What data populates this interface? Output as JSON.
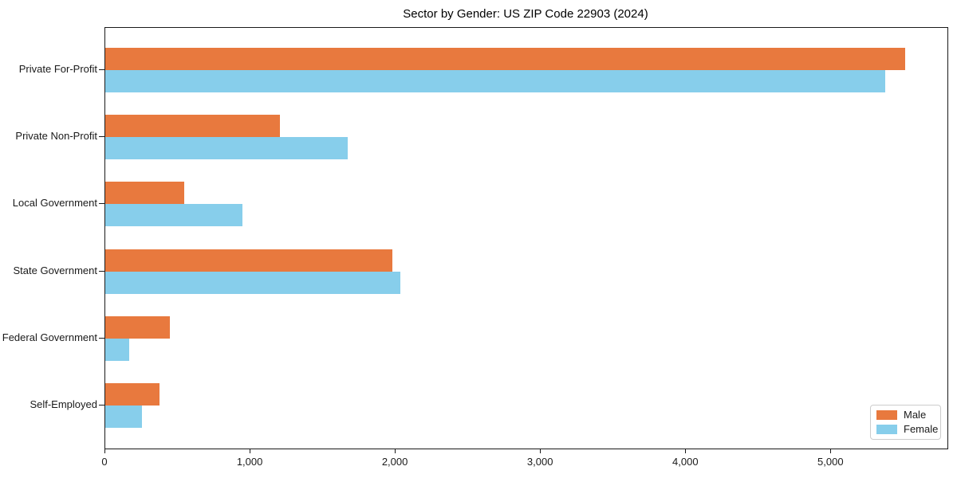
{
  "chart_data": {
    "type": "bar",
    "orientation": "horizontal",
    "title": "Sector by Gender: US ZIP Code 22903 (2024)",
    "categories": [
      "Private For-Profit",
      "Private Non-Profit",
      "Local Government",
      "State Government",
      "Federal Government",
      "Self-Employed"
    ],
    "series": [
      {
        "name": "Male",
        "color": "#e8793e",
        "values": [
          5510,
          1200,
          545,
          1975,
          445,
          375
        ]
      },
      {
        "name": "Female",
        "color": "#87ceeb",
        "values": [
          5370,
          1670,
          945,
          2030,
          165,
          250
        ]
      }
    ],
    "xlabel": "",
    "ylabel": "",
    "xlim": [
      0,
      5800
    ],
    "xticks": [
      {
        "value": 0,
        "label": "0"
      },
      {
        "value": 1000,
        "label": "1,000"
      },
      {
        "value": 2000,
        "label": "2,000"
      },
      {
        "value": 3000,
        "label": "3,000"
      },
      {
        "value": 4000,
        "label": "4,000"
      },
      {
        "value": 5000,
        "label": "5,000"
      }
    ],
    "grid": false,
    "legend": {
      "position": "lower right",
      "entries": [
        "Male",
        "Female"
      ]
    }
  }
}
